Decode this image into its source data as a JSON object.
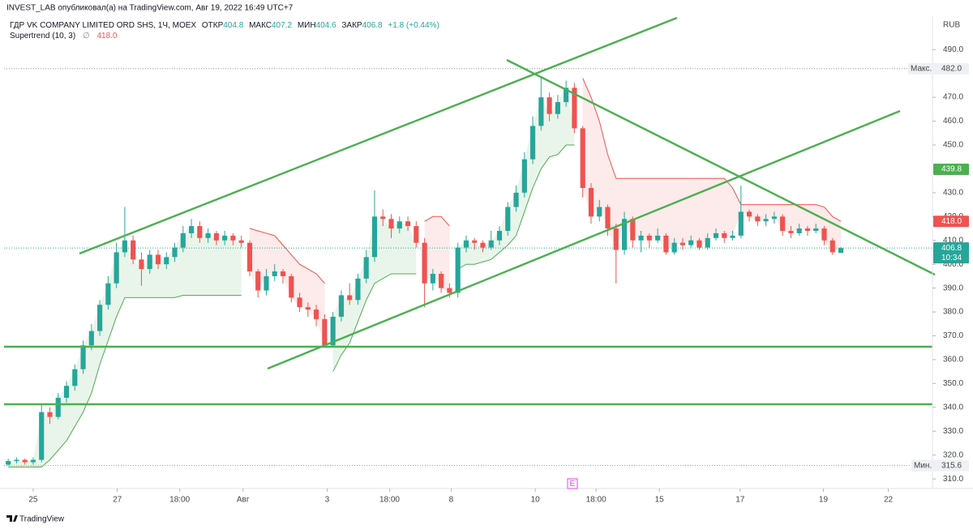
{
  "header": {
    "publisher": "INVEST_LAB опубликовал(а) на TradingView.com, Авг 19, 2022 16:49 UTC+7"
  },
  "footer": "TradingView",
  "chart_data": {
    "type": "candlestick",
    "title": "ГДР VK COMPANY LIMITED ORD SHS, 1Ч, MOEX",
    "legend": {
      "open_label": "ОТКР",
      "open": 404.8,
      "high_label": "МАКС",
      "high": 407.2,
      "low_label": "МИН",
      "low": 404.6,
      "close_label": "ЗАКР",
      "close": 406.8,
      "change": "+1.8 (+0.44%)"
    },
    "currency": "RUB",
    "up_color": "#26a69a",
    "down_color": "#ef5350",
    "open": [
      316,
      317.5,
      318,
      317,
      318,
      338,
      336,
      344,
      349,
      356,
      366,
      372,
      383,
      392,
      405,
      410,
      402,
      398,
      404,
      400,
      403,
      407,
      413,
      416,
      411,
      413,
      410,
      412,
      410,
      409,
      397,
      389,
      395,
      397,
      395,
      386,
      382,
      381,
      377,
      366,
      378,
      387,
      385,
      394,
      403,
      420,
      419,
      415,
      418,
      416,
      409,
      392,
      396,
      390,
      388,
      407,
      410,
      409,
      407,
      410,
      414,
      424,
      430,
      444,
      458,
      470,
      463,
      468,
      474,
      457,
      432,
      420,
      424,
      415,
      406,
      419,
      410,
      412,
      410,
      412,
      405,
      409,
      408,
      410,
      407,
      411,
      413,
      411,
      412,
      422,
      420,
      418,
      419,
      420,
      414,
      413,
      415,
      414,
      415,
      410,
      404.8
    ],
    "high": [
      318.5,
      319,
      318.5,
      319,
      341,
      340,
      346,
      351,
      358,
      368,
      375,
      385,
      395,
      409,
      424,
      412,
      405,
      406,
      406,
      405,
      409,
      416,
      419,
      418,
      415,
      414,
      414,
      413,
      412,
      410,
      398,
      398,
      400,
      398,
      396,
      388,
      384,
      383,
      379,
      380,
      389,
      392,
      396,
      406,
      431,
      423,
      421,
      420,
      420,
      418,
      411,
      398,
      397,
      392,
      409,
      412,
      411,
      410,
      414,
      416,
      426,
      433,
      447,
      462,
      478,
      472,
      471,
      477,
      476,
      458,
      434,
      427,
      425,
      417,
      422,
      420,
      414,
      413,
      415,
      413,
      411,
      411,
      412,
      411,
      413,
      415,
      414,
      414,
      433,
      423,
      421,
      421,
      422,
      421,
      416,
      417,
      416,
      417,
      416,
      411,
      407.2
    ],
    "low": [
      315.5,
      316.5,
      316,
      316,
      317,
      333,
      335,
      342,
      347,
      354,
      364,
      370,
      381,
      390,
      403,
      400,
      391,
      396,
      398,
      398,
      401,
      405,
      411,
      409,
      409,
      408,
      408,
      408,
      407,
      395,
      386,
      387,
      393,
      392,
      384,
      380,
      378,
      374,
      365,
      365,
      376,
      383,
      383,
      392,
      401,
      416,
      411,
      413,
      414,
      407,
      382,
      389,
      388,
      386,
      386,
      405,
      406,
      405,
      406,
      408,
      412,
      422,
      428,
      442,
      456,
      460,
      461,
      466,
      455,
      428,
      417,
      418,
      412,
      392,
      404,
      407,
      405,
      407,
      409,
      404,
      404,
      406,
      407,
      406,
      406,
      410,
      409,
      410,
      411,
      418,
      416,
      416,
      417,
      412,
      411,
      412,
      412,
      413,
      408,
      404,
      404.6
    ],
    "close": [
      317.5,
      318,
      317,
      318,
      338,
      336,
      344,
      349,
      356,
      366,
      372,
      383,
      392,
      405,
      410,
      402,
      398,
      404,
      400,
      403,
      407,
      413,
      416,
      411,
      413,
      410,
      412,
      410,
      409,
      397,
      389,
      395,
      397,
      395,
      386,
      382,
      381,
      377,
      366,
      378,
      387,
      385,
      394,
      403,
      420,
      419,
      415,
      418,
      416,
      409,
      392,
      396,
      390,
      388,
      407,
      410,
      409,
      407,
      410,
      414,
      424,
      430,
      444,
      458,
      470,
      463,
      468,
      474,
      457,
      432,
      420,
      424,
      415,
      406,
      419,
      410,
      412,
      410,
      412,
      405,
      409,
      408,
      410,
      407,
      411,
      413,
      411,
      412,
      422,
      420,
      418,
      419,
      420,
      414,
      413,
      415,
      414,
      415,
      410,
      405,
      406.8
    ],
    "supertrend": {
      "name": "Supertrend (10, 3)",
      "value": {
        "value": 418,
        "label": "418.0"
      },
      "up_color": "#4caf50",
      "down_color": "#ef5350",
      "up": [
        315,
        315,
        315,
        315,
        315,
        318,
        322,
        326,
        332,
        338,
        346,
        358,
        368,
        378,
        386,
        386,
        386,
        386,
        386,
        386,
        386,
        387,
        387,
        387,
        387,
        387,
        387,
        387,
        387,
        null,
        null,
        null,
        null,
        null,
        null,
        null,
        null,
        null,
        null,
        355,
        362,
        367,
        376,
        385,
        392,
        394,
        396,
        396,
        396,
        396,
        null,
        null,
        null,
        null,
        398,
        400,
        400,
        401,
        402,
        405,
        408,
        412,
        422,
        432,
        440,
        445,
        446,
        450,
        450,
        null,
        null,
        null,
        null,
        null,
        null,
        null,
        null,
        null,
        null,
        null,
        null,
        null,
        null,
        null,
        null,
        null,
        null,
        null,
        null,
        null,
        null,
        null,
        null,
        null,
        null,
        null,
        null,
        null,
        null,
        null,
        null
      ],
      "down": [
        null,
        null,
        null,
        null,
        null,
        null,
        null,
        null,
        null,
        null,
        null,
        null,
        null,
        null,
        null,
        null,
        null,
        null,
        null,
        null,
        null,
        null,
        null,
        null,
        null,
        null,
        null,
        null,
        null,
        415,
        414,
        413,
        412,
        408,
        404,
        400,
        398,
        396,
        392,
        null,
        null,
        null,
        null,
        null,
        null,
        null,
        null,
        null,
        null,
        null,
        418,
        420,
        420,
        416,
        null,
        null,
        null,
        null,
        null,
        null,
        null,
        null,
        null,
        null,
        null,
        null,
        null,
        null,
        null,
        478,
        470,
        460,
        446,
        436,
        436,
        436,
        436,
        436,
        436,
        436,
        436,
        436,
        436,
        436,
        436,
        436,
        436,
        432,
        425,
        425,
        425,
        425,
        425,
        425,
        425,
        425,
        425,
        425,
        424,
        420,
        418
      ]
    },
    "max_marker": {
      "label": "Макс.",
      "value": {
        "value": 482,
        "label": "482.0"
      }
    },
    "min_marker": {
      "label": "Мин.",
      "value": 315.6
    },
    "level_tag": 439.8,
    "last_price": {
      "value": 406.8,
      "countdown": "10:34"
    },
    "event_marker": "E",
    "xlim": [
      -0.5,
      111
    ],
    "xticks": [
      {
        "value": 3,
        "label": "25"
      },
      {
        "value": 13.1,
        "label": "27"
      },
      {
        "value": 20.6,
        "label": "18:00"
      },
      {
        "value": 28.2,
        "label": "Авг"
      },
      {
        "value": 38.3,
        "label": "3"
      },
      {
        "value": 45.8,
        "label": "18:00"
      },
      {
        "value": 53.2,
        "label": "8"
      },
      {
        "value": 63.3,
        "label": "10"
      },
      {
        "value": 70.6,
        "label": "18:00"
      },
      {
        "value": 78.2,
        "label": "15"
      },
      {
        "value": 87.9,
        "label": "17"
      },
      {
        "value": 97.9,
        "label": "19"
      },
      {
        "value": 105.7,
        "label": "22"
      }
    ],
    "ylim": [
      307,
      504
    ],
    "yticks": [
      {
        "value": 310,
        "label": "310.0"
      },
      {
        "value": 320,
        "label": "320.0"
      },
      {
        "value": 330,
        "label": "330.0"
      },
      {
        "value": 340,
        "label": "340.0"
      },
      {
        "value": 350,
        "label": "350.0"
      },
      {
        "value": 360,
        "label": "360.0"
      },
      {
        "value": 370,
        "label": "370.0"
      },
      {
        "value": 380,
        "label": "380.0"
      },
      {
        "value": 390,
        "label": "390.0"
      },
      {
        "value": 400,
        "label": "400.0"
      },
      {
        "value": 410,
        "label": "410.0"
      },
      {
        "value": 420,
        "label": "420.0"
      },
      {
        "value": 430,
        "label": "430.0"
      },
      {
        "value": 450,
        "label": "450.0"
      },
      {
        "value": 460,
        "label": "460.0"
      },
      {
        "value": 470,
        "label": "470.0"
      },
      {
        "value": 490,
        "label": "490.0"
      }
    ]
  }
}
